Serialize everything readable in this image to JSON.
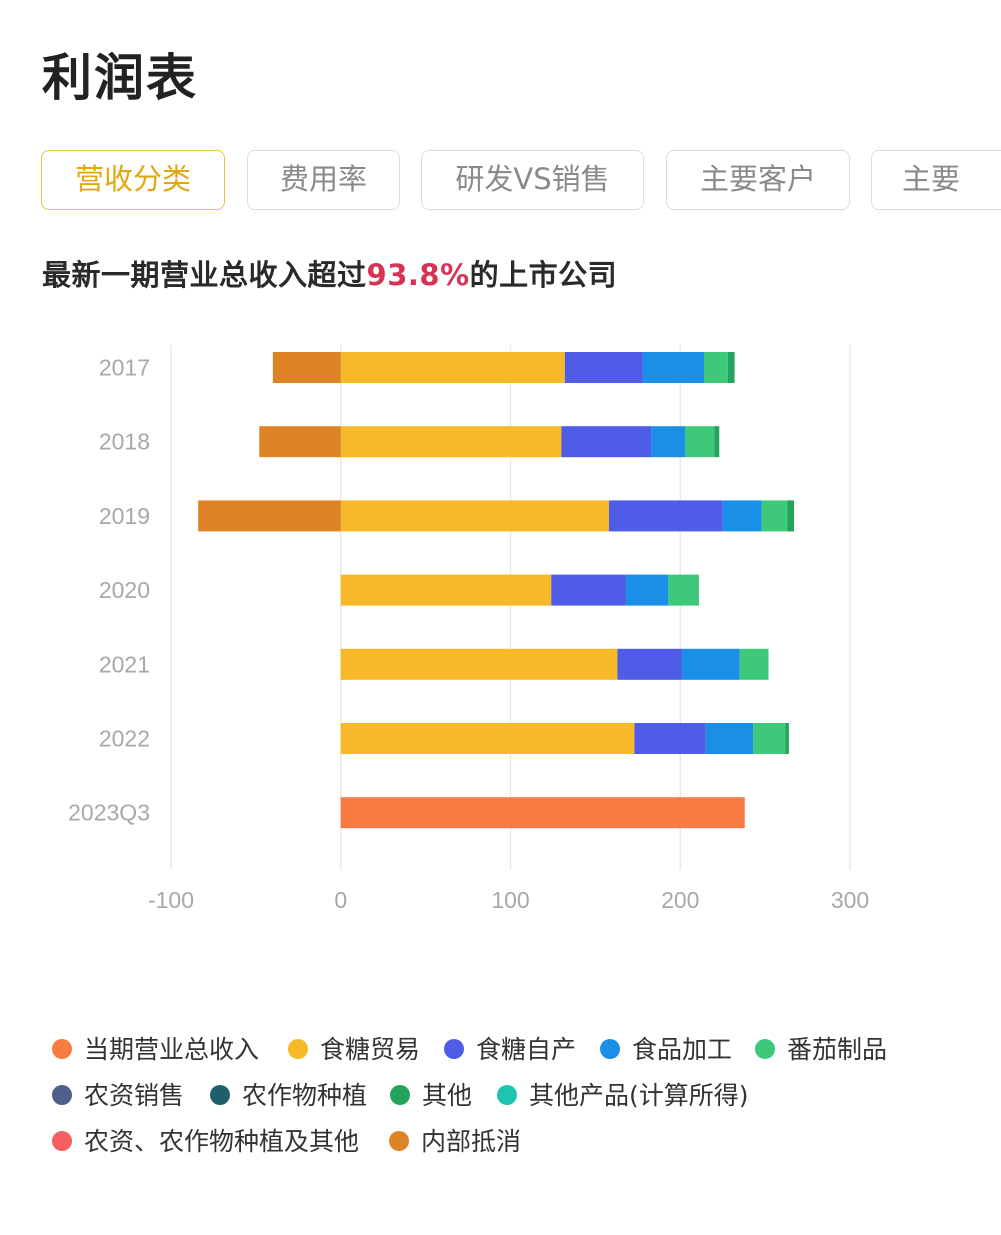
{
  "page": {
    "title": "利润表",
    "subtitle_prefix": "最新一期营业总收入超过",
    "subtitle_highlight": "93.8%",
    "subtitle_suffix": "的上市公司",
    "highlight_color": "#d63457"
  },
  "tabs": [
    {
      "label": "营收分类",
      "active": true
    },
    {
      "label": "费用率",
      "active": false
    },
    {
      "label": "研发VS销售",
      "active": false
    },
    {
      "label": "主要客户",
      "active": false
    },
    {
      "label": "主要",
      "active": false
    }
  ],
  "chart_data": {
    "type": "bar",
    "orientation": "horizontal",
    "stacked": true,
    "categories": [
      "2017",
      "2018",
      "2019",
      "2020",
      "2021",
      "2022",
      "2023Q3"
    ],
    "xlim": [
      -100,
      300
    ],
    "xticks": [
      -100,
      0,
      100,
      200,
      300
    ],
    "grid": true,
    "legend_position": "bottom",
    "series": [
      {
        "name": "当期营业总收入",
        "color": "#fa7a43",
        "values": [
          0,
          0,
          0,
          0,
          0,
          0,
          238
        ]
      },
      {
        "name": "食糖贸易",
        "color": "#f7b928",
        "values": [
          132,
          130,
          158,
          124,
          163,
          173,
          0
        ]
      },
      {
        "name": "食糖自产",
        "color": "#4e5ce8",
        "values": [
          46,
          53,
          67,
          44,
          38,
          42,
          0
        ]
      },
      {
        "name": "食品加工",
        "color": "#1a8fe6",
        "values": [
          36,
          20,
          23,
          25,
          34,
          28,
          0
        ]
      },
      {
        "name": "番茄制品",
        "color": "#3ec879",
        "values": [
          14,
          17,
          15,
          18,
          17,
          19,
          0
        ]
      },
      {
        "name": "农资销售",
        "color": "#4d5f8a",
        "values": [
          0,
          0,
          0,
          0,
          0,
          0,
          0
        ]
      },
      {
        "name": "农作物种植",
        "color": "#1e5f6b",
        "values": [
          0,
          0,
          0,
          0,
          0,
          0,
          0
        ]
      },
      {
        "name": "其他",
        "color": "#23a35c",
        "values": [
          4,
          3,
          4,
          0,
          0,
          2,
          0
        ]
      },
      {
        "name": "其他产品(计算所得)",
        "color": "#1fc4b0",
        "values": [
          0,
          0,
          0,
          0,
          0,
          0,
          0
        ]
      },
      {
        "name": "农资、农作物种植及其他",
        "color": "#f55f5f",
        "values": [
          0,
          0,
          0,
          0,
          0,
          0,
          0
        ]
      },
      {
        "name": "内部抵消",
        "color": "#de8427",
        "values": [
          -40,
          -48,
          -84,
          0,
          0,
          0,
          0
        ]
      }
    ]
  }
}
